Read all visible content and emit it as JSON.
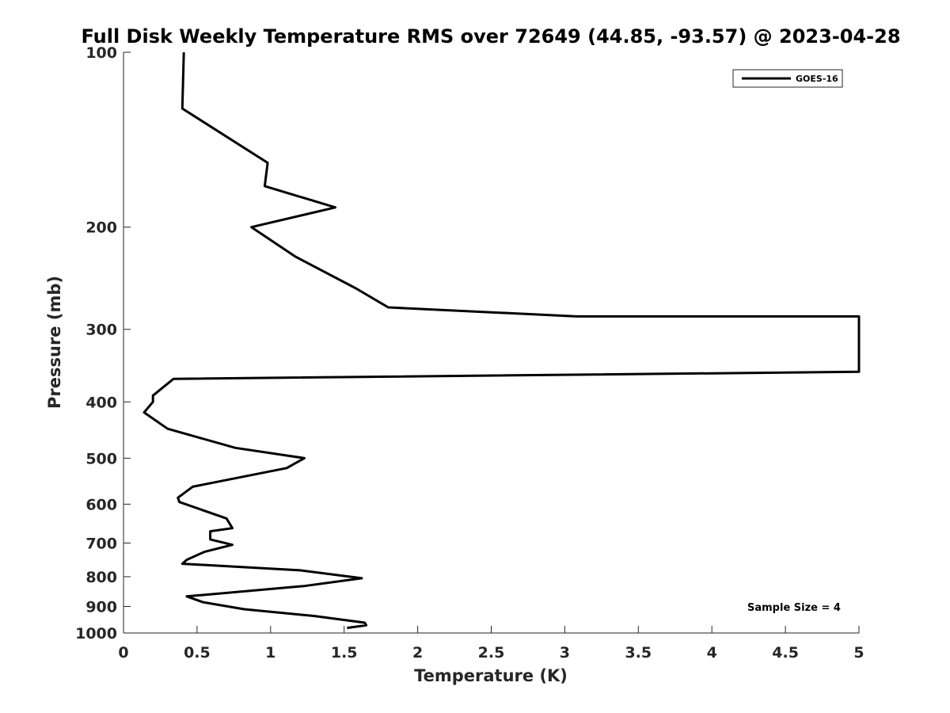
{
  "chart_data": {
    "type": "line",
    "title": "Full Disk Weekly Temperature RMS over 72649 (44.85, -93.57) @ 2023-04-28",
    "xlabel": "Temperature (K)",
    "ylabel": "Pressure (mb)",
    "xlim": [
      0,
      5
    ],
    "ylim": [
      100,
      1000
    ],
    "y_scale": "log",
    "y_reversed": true,
    "x_ticks": [
      "0",
      "0.5",
      "1",
      "1.5",
      "2",
      "2.5",
      "3",
      "3.5",
      "4",
      "4.5",
      "5"
    ],
    "y_ticks": [
      "100",
      "200",
      "300",
      "400",
      "500",
      "600",
      "700",
      "800",
      "900",
      "1000"
    ],
    "legend": {
      "position": "top-right",
      "entries": [
        "GOES-16"
      ]
    },
    "annotation": "Sample Size = 4",
    "series": [
      {
        "name": "GOES-16",
        "color": "#000000",
        "x": [
          0.41,
          0.4,
          0.98,
          0.96,
          1.44,
          0.87,
          1.17,
          1.58,
          1.8,
          3.08,
          5.0,
          5.0,
          0.34,
          0.2,
          0.2,
          0.14,
          0.3,
          0.76,
          1.23,
          1.11,
          0.47,
          0.37,
          0.38,
          0.7,
          0.74,
          0.59,
          0.59,
          0.74,
          0.55,
          0.43,
          0.4,
          1.2,
          1.62,
          1.23,
          0.43,
          0.54,
          0.82,
          1.3,
          1.64,
          1.65,
          1.52
        ],
        "y": [
          100,
          125,
          155,
          170,
          185,
          200,
          225,
          255,
          275,
          285,
          285,
          355,
          365,
          390,
          400,
          417,
          445,
          480,
          500,
          520,
          560,
          585,
          595,
          635,
          660,
          668,
          690,
          705,
          725,
          748,
          760,
          780,
          805,
          830,
          865,
          885,
          910,
          935,
          960,
          970,
          980
        ]
      }
    ]
  }
}
